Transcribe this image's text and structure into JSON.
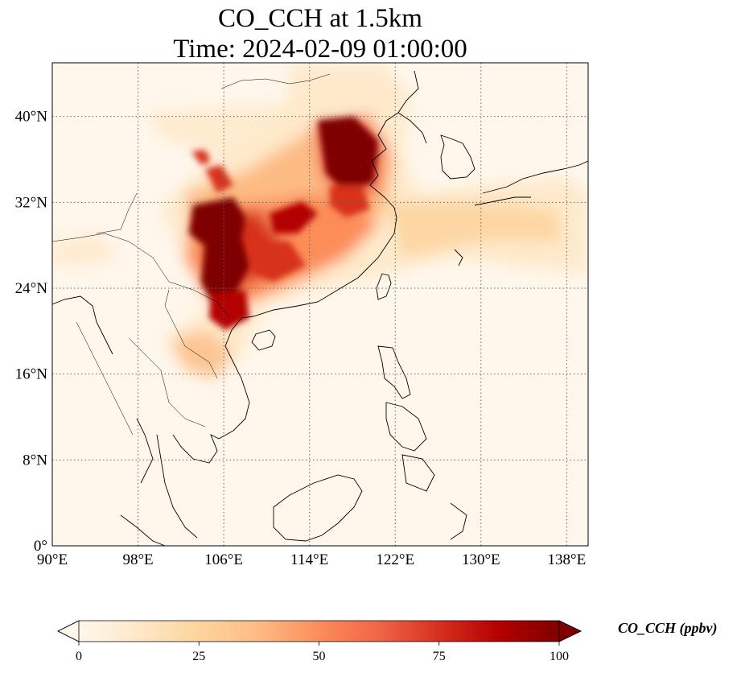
{
  "title": {
    "line1": "CO_CCH at 1.5km",
    "line2": "Time: 2024-02-09 01:00:00"
  },
  "map": {
    "region": "East and Southeast Asia",
    "projection": "PlateCarree",
    "lon_range": [
      90,
      140
    ],
    "lat_range": [
      0,
      45
    ],
    "gridlines": "dotted",
    "lon_ticks": [
      {
        "value": 90,
        "label": "90°E"
      },
      {
        "value": 98,
        "label": "98°E"
      },
      {
        "value": 106,
        "label": "106°E"
      },
      {
        "value": 114,
        "label": "114°E"
      },
      {
        "value": 122,
        "label": "122°E"
      },
      {
        "value": 130,
        "label": "130°E"
      },
      {
        "value": 138,
        "label": "138°E"
      }
    ],
    "lat_ticks": [
      {
        "value": 0,
        "label": "0°"
      },
      {
        "value": 8,
        "label": "8°N"
      },
      {
        "value": 16,
        "label": "16°N"
      },
      {
        "value": 24,
        "label": "24°N"
      },
      {
        "value": 32,
        "label": "32°N"
      },
      {
        "value": 40,
        "label": "40°N"
      }
    ]
  },
  "colorbar": {
    "label": "CO_CCH (ppbv)",
    "colormap": "OrRd",
    "colors": [
      "#fff7ec",
      "#fee8c8",
      "#fdd49e",
      "#fdbb84",
      "#fc8d59",
      "#ef6548",
      "#d7301f",
      "#b30000",
      "#7f0000"
    ],
    "min": 0,
    "max": 100,
    "extend": "both",
    "ticks": [
      {
        "value": 0,
        "label": "0"
      },
      {
        "value": 25,
        "label": "25"
      },
      {
        "value": 50,
        "label": "50"
      },
      {
        "value": 75,
        "label": "75"
      },
      {
        "value": 100,
        "label": "100"
      }
    ]
  }
}
